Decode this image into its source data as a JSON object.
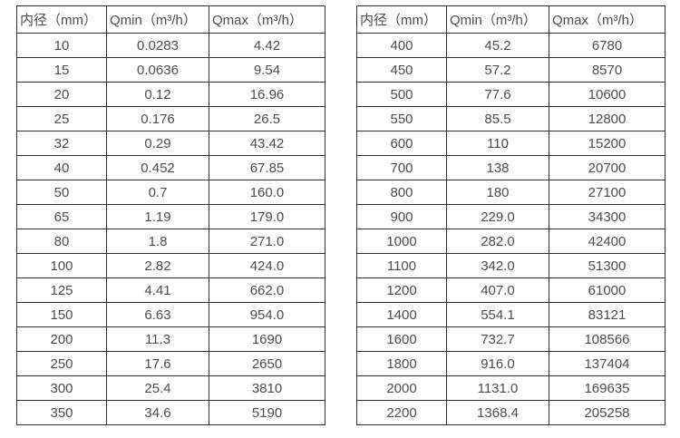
{
  "page": {
    "background": "#ffffff",
    "text_color": "#4d4d4d",
    "border_color": "#2f2f2f"
  },
  "tables": [
    {
      "name": "flow-rate-table-small-diameters",
      "headers": [
        "内径（mm）",
        "Qmin（m³/h）",
        "Qmax（m³/h）"
      ],
      "rows": [
        [
          "10",
          "0.0283",
          "4.42"
        ],
        [
          "15",
          "0.0636",
          "9.54"
        ],
        [
          "20",
          "0.12",
          "16.96"
        ],
        [
          "25",
          "0.176",
          "26.5"
        ],
        [
          "32",
          "0.29",
          "43.42"
        ],
        [
          "40",
          "0.452",
          "67.85"
        ],
        [
          "50",
          "0.7",
          "160.0"
        ],
        [
          "65",
          "1.19",
          "179.0"
        ],
        [
          "80",
          "1.8",
          "271.0"
        ],
        [
          "100",
          "2.82",
          "424.0"
        ],
        [
          "125",
          "4.41",
          "662.0"
        ],
        [
          "150",
          "6.63",
          "954.0"
        ],
        [
          "200",
          "11.3",
          "1690"
        ],
        [
          "250",
          "17.6",
          "2650"
        ],
        [
          "300",
          "25.4",
          "3810"
        ],
        [
          "350",
          "34.6",
          "5190"
        ]
      ]
    },
    {
      "name": "flow-rate-table-large-diameters",
      "headers": [
        "内径（mm）",
        "Qmin（m³/h）",
        "Qmax（m³/h）"
      ],
      "rows": [
        [
          "400",
          "45.2",
          "6780"
        ],
        [
          "450",
          "57.2",
          "8570"
        ],
        [
          "500",
          "77.6",
          "10600"
        ],
        [
          "550",
          "85.5",
          "12800"
        ],
        [
          "600",
          "110",
          "15200"
        ],
        [
          "700",
          "138",
          "20700"
        ],
        [
          "800",
          "180",
          "27100"
        ],
        [
          "900",
          "229.0",
          "34300"
        ],
        [
          "1000",
          "282.0",
          "42400"
        ],
        [
          "1100",
          "342.0",
          "51300"
        ],
        [
          "1200",
          "407.0",
          "61000"
        ],
        [
          "1400",
          "554.1",
          "83121"
        ],
        [
          "1600",
          "732.7",
          "108566"
        ],
        [
          "1800",
          "916.0",
          "137404"
        ],
        [
          "2000",
          "1131.0",
          "169635"
        ],
        [
          "2200",
          "1368.4",
          "205258"
        ]
      ]
    }
  ]
}
